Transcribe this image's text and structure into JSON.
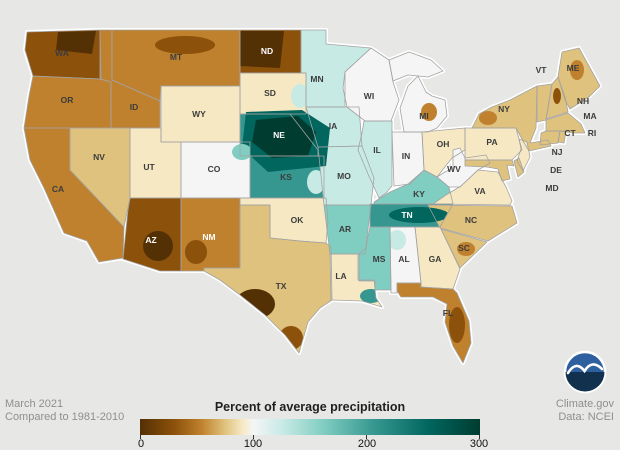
{
  "figure": {
    "background": "#e7e7e5",
    "land_halo": "#ffffff",
    "state_border_color": "#a3a3a3",
    "label_color": "#3c3c3c",
    "label_color_light": "#ffffff"
  },
  "footer": {
    "period": "March 2021",
    "baseline": "Compared to 1981-2010",
    "site": "Climate.gov",
    "source": "Data: NCEI",
    "text_color": "#8f8f8f"
  },
  "legend": {
    "title": "Percent of average precipitation",
    "ticks": [
      "0",
      "100",
      "200",
      "300"
    ],
    "gradient_stops": [
      "#543005",
      "#8c510a",
      "#bf812d",
      "#dfc27d",
      "#f6e8c3",
      "#f5f5f5",
      "#c7eae5",
      "#80cdc1",
      "#35978f",
      "#01665e",
      "#003c30"
    ]
  },
  "logo": {
    "org": "NOAA",
    "circle_color": "#2e5f9e",
    "sea_color": "#12314f",
    "gull_color": "#ffffff"
  },
  "chart_data": {
    "type": "choropleth_map",
    "title": "Percent of average precipitation",
    "period": "March 2021",
    "baseline": "1981-2010",
    "source": "NCEI",
    "region": "Contiguous United States",
    "scale": {
      "min": 0,
      "max": 300,
      "midpoint": 100,
      "unit": "percent of 1981-2010 average precipitation"
    },
    "palette": {
      "c1": "#543005",
      "c2": "#8c510a",
      "c3": "#bf812d",
      "c4": "#dfc27d",
      "c5": "#f6e8c3",
      "c0": "#f5f5f5",
      "g5": "#c7eae5",
      "g4": "#80cdc1",
      "g3": "#35978f",
      "g2": "#01665e",
      "g1": "#003c30"
    },
    "states": [
      {
        "abbr": "WA",
        "level": "c2",
        "pct_of_avg_est": 40
      },
      {
        "abbr": "OR",
        "level": "c3",
        "pct_of_avg_est": 55
      },
      {
        "abbr": "CA",
        "level": "c3",
        "pct_of_avg_est": 55
      },
      {
        "abbr": "NV",
        "level": "c4",
        "pct_of_avg_est": 80
      },
      {
        "abbr": "ID",
        "level": "c3",
        "pct_of_avg_est": 60
      },
      {
        "abbr": "MT",
        "level": "c3",
        "pct_of_avg_est": 55
      },
      {
        "abbr": "WY",
        "level": "c5",
        "pct_of_avg_est": 90
      },
      {
        "abbr": "UT",
        "level": "c5",
        "pct_of_avg_est": 85
      },
      {
        "abbr": "CO",
        "level": "c0",
        "pct_of_avg_est": 100
      },
      {
        "abbr": "AZ",
        "level": "c2",
        "pct_of_avg_est": 30,
        "light": true
      },
      {
        "abbr": "NM",
        "level": "c3",
        "pct_of_avg_est": 50,
        "light": true
      },
      {
        "abbr": "ND",
        "level": "c2",
        "pct_of_avg_est": 20,
        "light": true
      },
      {
        "abbr": "SD",
        "level": "c5",
        "pct_of_avg_est": 90
      },
      {
        "abbr": "NE",
        "level": "g3",
        "pct_of_avg_est": 230,
        "light": true
      },
      {
        "abbr": "KS",
        "level": "g3",
        "pct_of_avg_est": 160
      },
      {
        "abbr": "OK",
        "level": "c5",
        "pct_of_avg_est": 90
      },
      {
        "abbr": "TX",
        "level": "c4",
        "pct_of_avg_est": 70
      },
      {
        "abbr": "MN",
        "level": "g5",
        "pct_of_avg_est": 110
      },
      {
        "abbr": "IA",
        "level": "g5",
        "pct_of_avg_est": 110
      },
      {
        "abbr": "MO",
        "level": "g5",
        "pct_of_avg_est": 115
      },
      {
        "abbr": "AR",
        "level": "g4",
        "pct_of_avg_est": 120
      },
      {
        "abbr": "LA",
        "level": "c5",
        "pct_of_avg_est": 95
      },
      {
        "abbr": "WI",
        "level": "c0",
        "pct_of_avg_est": 100
      },
      {
        "abbr": "IL",
        "level": "g5",
        "pct_of_avg_est": 110
      },
      {
        "abbr": "IN",
        "level": "c0",
        "pct_of_avg_est": 100
      },
      {
        "abbr": "OH",
        "level": "c5",
        "pct_of_avg_est": 95
      },
      {
        "abbr": "MI",
        "level": "c0",
        "pct_of_avg_est": 95
      },
      {
        "abbr": "KY",
        "level": "g4",
        "pct_of_avg_est": 130
      },
      {
        "abbr": "TN",
        "level": "g3",
        "pct_of_avg_est": 175,
        "light": true
      },
      {
        "abbr": "MS",
        "level": "g4",
        "pct_of_avg_est": 120
      },
      {
        "abbr": "AL",
        "level": "c0",
        "pct_of_avg_est": 100
      },
      {
        "abbr": "GA",
        "level": "c5",
        "pct_of_avg_est": 90
      },
      {
        "abbr": "FL",
        "level": "c3",
        "pct_of_avg_est": 50
      },
      {
        "abbr": "SC",
        "level": "c4",
        "pct_of_avg_est": 75
      },
      {
        "abbr": "NC",
        "level": "c4",
        "pct_of_avg_est": 80
      },
      {
        "abbr": "VA",
        "level": "c5",
        "pct_of_avg_est": 90
      },
      {
        "abbr": "WV",
        "level": "c0",
        "pct_of_avg_est": 100
      },
      {
        "abbr": "PA",
        "level": "c5",
        "pct_of_avg_est": 90
      },
      {
        "abbr": "NY",
        "level": "c4",
        "pct_of_avg_est": 75
      },
      {
        "abbr": "VT",
        "level": "c4",
        "pct_of_avg_est": 75
      },
      {
        "abbr": "NH",
        "level": "c4",
        "pct_of_avg_est": 65
      },
      {
        "abbr": "ME",
        "level": "c4",
        "pct_of_avg_est": 70
      },
      {
        "abbr": "MA",
        "level": "c4",
        "pct_of_avg_est": 70
      },
      {
        "abbr": "CT",
        "level": "c4",
        "pct_of_avg_est": 75
      },
      {
        "abbr": "RI",
        "level": "c4",
        "pct_of_avg_est": 75
      },
      {
        "abbr": "NJ",
        "level": "c5",
        "pct_of_avg_est": 90
      },
      {
        "abbr": "DE",
        "level": "c4",
        "pct_of_avg_est": 80
      },
      {
        "abbr": "MD",
        "level": "c4",
        "pct_of_avg_est": 80
      }
    ],
    "patches": [
      {
        "name": "olympic-washington",
        "level": "c1"
      },
      {
        "name": "north-montana",
        "level": "c2"
      },
      {
        "name": "west-north-dakota",
        "level": "c1"
      },
      {
        "name": "central-plains-very-wet",
        "level": "g2"
      },
      {
        "name": "nebraska-wet-core",
        "level": "g1"
      },
      {
        "name": "northeast-colorado",
        "level": "g4"
      },
      {
        "name": "east-kansas-light",
        "level": "g5"
      },
      {
        "name": "southeast-arizona",
        "level": "c1"
      },
      {
        "name": "southwest-new-mexico",
        "level": "c2"
      },
      {
        "name": "southwest-texas",
        "level": "c1"
      },
      {
        "name": "south-texas",
        "level": "c2"
      },
      {
        "name": "east-south-dakota",
        "level": "g5"
      },
      {
        "name": "tennessee-wet-band",
        "level": "g2"
      },
      {
        "name": "louisiana-delta",
        "level": "g3"
      },
      {
        "name": "lower-michigan-dry",
        "level": "c3"
      },
      {
        "name": "western-new-york",
        "level": "c3"
      },
      {
        "name": "maine-dry",
        "level": "c3"
      },
      {
        "name": "new-hampshire-dry",
        "level": "c2"
      },
      {
        "name": "florida-peninsula-dry",
        "level": "c2"
      },
      {
        "name": "northwest-alabama",
        "level": "g5"
      },
      {
        "name": "south-carolina-dry",
        "level": "c3"
      }
    ]
  }
}
